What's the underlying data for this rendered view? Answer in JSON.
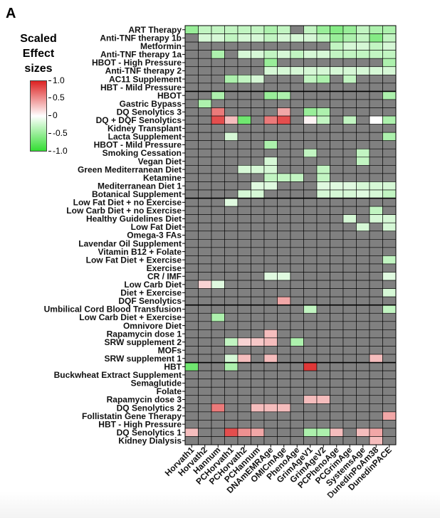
{
  "panel_letter": "A",
  "legend": {
    "title_lines": [
      "Scaled",
      "Effect",
      "sizes"
    ],
    "ticks": [
      "1.0",
      "0.5",
      "0",
      "-0.5",
      "-1.0"
    ],
    "tick_values": [
      1.0,
      0.5,
      0,
      -0.5,
      -1.0
    ],
    "colors": {
      "neg": "#33dd33",
      "zero": "#ffffff",
      "pos": "#dd2222"
    }
  },
  "colors": {
    "missing": "#808080",
    "grid": "#000000",
    "group_separator": "#000000"
  },
  "chart_data": {
    "type": "heatmap",
    "xlabel": "",
    "ylabel": "",
    "zlim": [
      -1,
      1
    ],
    "columns": [
      "Horvath1",
      "Horvath2",
      "Hannum",
      "PCHorvath1",
      "PCHorvath2",
      "PCHannum",
      "DNAmEMRAge",
      "OMICmAge",
      "PhenoAge",
      "GrimAgeV1",
      "GrimAgeV2",
      "PCPhenoAge",
      "PCGrimAge",
      "SystemsAge",
      "DunedinPoAm38",
      "DunedinPACE"
    ],
    "rows": [
      "ART Therapy",
      "Anti-TNF therapy 1b",
      "Metformin",
      "Anti-TNF therapy 1a",
      "HBOT - High Pressure",
      "Anti-TNF therapy 2",
      "AC11 Supplement",
      "HBT - Mild Pressure",
      "HBOT",
      "Gastric Bypass",
      "DQ Senolytics 3",
      "DQ + DQF Senolytics",
      "Kidney Transplant",
      "Lacta Supplement",
      "HBOT - Mild Pressure",
      "Smoking Cessation",
      "Vegan Diet",
      "Green Mediterranean Diet",
      "Ketamine",
      "Mediterranean Diet 1",
      "Botanical Supplement",
      "Low Fat Diet + no Exercise",
      "Low Carb Diet + no Exercise",
      "Healthy Guidelines Diet",
      "Low Fat Diet",
      "Omega-3 FAs",
      "Lavendar Oil Supplement",
      "Vitamin B12 + Folate",
      "Low Fat Diet + Exercise",
      "Exercise",
      "CR / IMF",
      "Low Carb Diet",
      "Diet + Exercise",
      "DQF Senolytics",
      "Umbilical Cord Blood Transfusion",
      "Low Carb Diet + Exercise",
      "Omnivore Diet",
      "Rapamycin dose 1",
      "SRW supplement 2",
      "MOFs",
      "SRW supplement 1",
      "HBT",
      "Buckwheat Extract Supplement",
      "Semaglutide",
      "Folate",
      "Rapamycin dose 3",
      "DQ Senolytics 2",
      "Follistatin Gene Therapy",
      "HBT - High Pressure",
      "DQ Senolytics 1",
      "Kidney Dialysis"
    ],
    "group_separators_after_row": [
      7,
      20,
      33,
      40
    ],
    "values": [
      [
        -0.5,
        -0.3,
        -0.3,
        -0.3,
        -0.3,
        -0.3,
        -0.4,
        -0.3,
        null,
        -0.3,
        -0.5,
        -0.6,
        -0.5,
        -0.3,
        -0.4,
        -0.4
      ],
      [
        null,
        -0.2,
        -0.2,
        -0.3,
        -0.2,
        -0.2,
        -0.3,
        -0.2,
        -0.2,
        -0.2,
        -0.3,
        -0.5,
        -0.4,
        -0.3,
        -0.6,
        -0.3
      ],
      [
        null,
        null,
        null,
        null,
        null,
        null,
        null,
        null,
        null,
        null,
        null,
        -0.3,
        -0.2,
        -0.2,
        -0.3,
        -0.2
      ],
      [
        null,
        null,
        -0.4,
        null,
        -0.2,
        -0.2,
        -0.3,
        -0.2,
        -0.3,
        -0.2,
        -0.2,
        -0.3,
        -0.3,
        -0.3,
        -0.3,
        -0.3
      ],
      [
        null,
        null,
        null,
        null,
        null,
        null,
        -0.5,
        null,
        null,
        null,
        null,
        null,
        null,
        null,
        null,
        -0.4
      ],
      [
        null,
        null,
        null,
        null,
        null,
        null,
        -0.2,
        -0.2,
        -0.2,
        -0.2,
        -0.2,
        -0.2,
        -0.2,
        -0.2,
        -0.2,
        -0.2
      ],
      [
        null,
        null,
        null,
        -0.4,
        -0.3,
        -0.2,
        null,
        null,
        null,
        -0.3,
        -0.4,
        null,
        -0.3,
        null,
        null,
        null
      ],
      [
        null,
        null,
        null,
        null,
        null,
        null,
        null,
        null,
        null,
        null,
        null,
        null,
        null,
        null,
        null,
        null
      ],
      [
        null,
        null,
        -0.4,
        null,
        null,
        null,
        -0.5,
        -0.4,
        null,
        null,
        null,
        null,
        null,
        null,
        null,
        -0.4
      ],
      [
        null,
        -0.4,
        null,
        null,
        null,
        null,
        null,
        null,
        null,
        null,
        null,
        null,
        null,
        null,
        null,
        null
      ],
      [
        null,
        null,
        0.6,
        null,
        null,
        null,
        null,
        0.4,
        null,
        -0.5,
        -0.4,
        null,
        null,
        null,
        null,
        null
      ],
      [
        null,
        null,
        0.8,
        0.3,
        -0.7,
        null,
        0.6,
        0.8,
        null,
        0.05,
        -0.3,
        null,
        -0.3,
        null,
        0.0,
        -0.4
      ],
      [
        null,
        null,
        null,
        null,
        null,
        null,
        null,
        null,
        null,
        null,
        null,
        null,
        null,
        null,
        null,
        null
      ],
      [
        null,
        null,
        null,
        -0.2,
        null,
        null,
        null,
        null,
        null,
        null,
        null,
        null,
        null,
        null,
        null,
        -0.4
      ],
      [
        null,
        null,
        null,
        null,
        null,
        null,
        -0.4,
        null,
        null,
        null,
        null,
        null,
        null,
        null,
        null,
        null
      ],
      [
        null,
        null,
        null,
        null,
        null,
        null,
        null,
        null,
        null,
        -0.3,
        null,
        null,
        null,
        -0.3,
        null,
        null
      ],
      [
        null,
        null,
        null,
        null,
        null,
        null,
        -0.2,
        null,
        null,
        null,
        null,
        null,
        null,
        -0.3,
        null,
        null
      ],
      [
        null,
        null,
        null,
        null,
        -0.2,
        -0.2,
        -0.2,
        null,
        null,
        null,
        -0.3,
        null,
        null,
        null,
        null,
        null
      ],
      [
        null,
        null,
        null,
        null,
        null,
        null,
        -0.3,
        -0.3,
        -0.3,
        null,
        -0.3,
        null,
        null,
        null,
        null,
        null
      ],
      [
        null,
        null,
        null,
        null,
        null,
        -0.15,
        -0.15,
        null,
        null,
        null,
        -0.15,
        -0.15,
        -0.15,
        -0.2,
        -0.2,
        -0.2
      ],
      [
        null,
        null,
        null,
        null,
        -0.2,
        -0.2,
        null,
        null,
        null,
        null,
        -0.2,
        -0.2,
        -0.2,
        -0.15,
        -0.2,
        -0.3
      ],
      [
        null,
        null,
        null,
        -0.15,
        null,
        null,
        null,
        null,
        null,
        null,
        null,
        null,
        null,
        null,
        null,
        null
      ],
      [
        null,
        null,
        null,
        null,
        null,
        null,
        null,
        null,
        null,
        null,
        null,
        null,
        null,
        null,
        -0.3,
        null
      ],
      [
        null,
        null,
        null,
        null,
        null,
        null,
        null,
        null,
        null,
        null,
        null,
        null,
        -0.2,
        null,
        -0.2,
        -0.2
      ],
      [
        null,
        null,
        null,
        null,
        null,
        null,
        null,
        null,
        null,
        null,
        null,
        null,
        null,
        -0.2,
        null,
        -0.2
      ],
      [
        null,
        null,
        null,
        null,
        null,
        null,
        null,
        null,
        null,
        null,
        null,
        null,
        null,
        null,
        null,
        null
      ],
      [
        null,
        null,
        null,
        null,
        null,
        null,
        null,
        null,
        null,
        null,
        null,
        null,
        null,
        null,
        null,
        null
      ],
      [
        null,
        null,
        null,
        null,
        null,
        null,
        null,
        null,
        null,
        null,
        null,
        null,
        null,
        null,
        null,
        null
      ],
      [
        null,
        null,
        null,
        null,
        null,
        null,
        null,
        null,
        null,
        null,
        null,
        null,
        null,
        null,
        null,
        -0.3
      ],
      [
        null,
        null,
        null,
        null,
        null,
        null,
        null,
        null,
        null,
        null,
        null,
        null,
        null,
        null,
        null,
        null
      ],
      [
        null,
        null,
        null,
        null,
        null,
        null,
        -0.15,
        -0.15,
        null,
        null,
        null,
        null,
        null,
        null,
        null,
        -0.15
      ],
      [
        null,
        0.2,
        -0.15,
        null,
        null,
        null,
        null,
        null,
        null,
        null,
        null,
        null,
        null,
        null,
        null,
        null
      ],
      [
        null,
        null,
        null,
        null,
        null,
        null,
        null,
        null,
        null,
        null,
        null,
        null,
        null,
        null,
        null,
        -0.2
      ],
      [
        null,
        null,
        null,
        null,
        null,
        null,
        null,
        0.4,
        null,
        null,
        null,
        null,
        null,
        null,
        null,
        null
      ],
      [
        null,
        null,
        null,
        null,
        null,
        null,
        null,
        null,
        null,
        -0.3,
        null,
        null,
        null,
        null,
        null,
        -0.3
      ],
      [
        null,
        null,
        -0.4,
        null,
        null,
        null,
        null,
        null,
        null,
        null,
        null,
        null,
        null,
        null,
        null,
        null
      ],
      [
        null,
        null,
        null,
        null,
        null,
        null,
        null,
        null,
        null,
        null,
        null,
        null,
        null,
        null,
        null,
        null
      ],
      [
        null,
        null,
        null,
        null,
        null,
        null,
        0.3,
        null,
        null,
        null,
        null,
        null,
        null,
        null,
        null,
        null
      ],
      [
        null,
        null,
        null,
        -0.3,
        0.2,
        0.25,
        0.3,
        null,
        -0.4,
        null,
        null,
        null,
        null,
        null,
        null,
        null
      ],
      [
        null,
        null,
        null,
        null,
        null,
        null,
        null,
        null,
        null,
        null,
        null,
        null,
        null,
        null,
        null,
        null
      ],
      [
        null,
        null,
        null,
        -0.2,
        0.3,
        null,
        0.3,
        null,
        null,
        null,
        null,
        null,
        null,
        null,
        0.3,
        null
      ],
      [
        -0.7,
        null,
        null,
        -0.4,
        null,
        null,
        null,
        null,
        null,
        0.9,
        null,
        null,
        null,
        null,
        null,
        null
      ],
      [
        null,
        null,
        null,
        null,
        null,
        null,
        null,
        null,
        null,
        null,
        null,
        null,
        null,
        null,
        null,
        null
      ],
      [
        null,
        null,
        null,
        null,
        null,
        null,
        null,
        null,
        null,
        null,
        null,
        null,
        null,
        null,
        null,
        null
      ],
      [
        null,
        null,
        null,
        null,
        null,
        null,
        null,
        null,
        null,
        null,
        null,
        null,
        null,
        null,
        null,
        null
      ],
      [
        null,
        null,
        null,
        null,
        null,
        null,
        null,
        null,
        null,
        0.3,
        0.3,
        null,
        null,
        null,
        null,
        null
      ],
      [
        null,
        null,
        0.6,
        null,
        null,
        0.3,
        0.3,
        0.3,
        null,
        null,
        null,
        null,
        null,
        null,
        null,
        null
      ],
      [
        null,
        null,
        null,
        null,
        null,
        null,
        null,
        null,
        null,
        null,
        null,
        null,
        null,
        null,
        null,
        0.4
      ],
      [
        null,
        null,
        null,
        null,
        null,
        null,
        null,
        null,
        null,
        null,
        null,
        null,
        null,
        null,
        null,
        null
      ],
      [
        0.3,
        null,
        null,
        0.8,
        0.5,
        0.4,
        null,
        null,
        null,
        -0.4,
        -0.4,
        0.3,
        null,
        0.3,
        0.4,
        null
      ],
      [
        null,
        null,
        null,
        null,
        null,
        null,
        null,
        null,
        null,
        null,
        null,
        null,
        null,
        null,
        0.3,
        null
      ]
    ]
  }
}
